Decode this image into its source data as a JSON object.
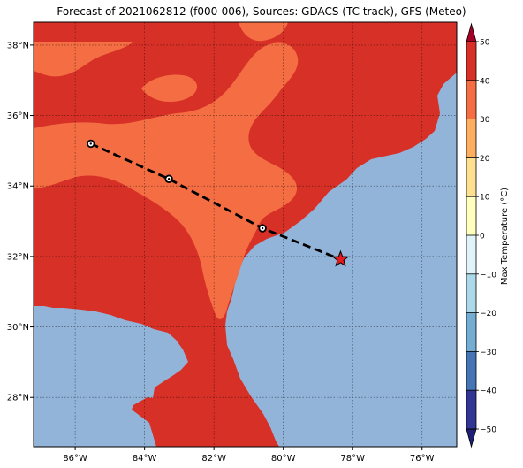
{
  "title": "Forecast of 2021062812 (f000-006), Sources: GDACS (TC track), GFS (Meteo)",
  "map": {
    "lon_range": [
      -87.2,
      -75.0
    ],
    "lat_range": [
      26.6,
      38.65
    ],
    "lat_ticks": [
      {
        "value": 28,
        "label": "28°N"
      },
      {
        "value": 30,
        "label": "30°N"
      },
      {
        "value": 32,
        "label": "32°N"
      },
      {
        "value": 34,
        "label": "34°N"
      },
      {
        "value": 36,
        "label": "36°N"
      },
      {
        "value": 38,
        "label": "38°N"
      }
    ],
    "lon_ticks": [
      {
        "value": -86,
        "label": "86°W"
      },
      {
        "value": -84,
        "label": "84°W"
      },
      {
        "value": -82,
        "label": "82°W"
      },
      {
        "value": -80,
        "label": "80°W"
      },
      {
        "value": -78,
        "label": "78°W"
      },
      {
        "value": -76,
        "label": "76°W"
      }
    ],
    "gridlines": "dotted",
    "ocean_color": "#92b4d8",
    "fill_30_40_color": "#d73027",
    "fill_20_30_color": "#f46d43"
  },
  "track": {
    "points": [
      {
        "lon": -85.55,
        "lat": 35.2,
        "marker": "circle"
      },
      {
        "lon": -83.3,
        "lat": 34.2,
        "marker": "circle"
      },
      {
        "lon": -80.6,
        "lat": 32.8,
        "marker": "circle"
      },
      {
        "lon": -78.35,
        "lat": 31.92,
        "marker": "star"
      }
    ],
    "line_color": "#000000",
    "star_color": "#e41a1c"
  },
  "colorbar": {
    "label": "Max Temperature (°C)",
    "levels": [
      -50,
      -40,
      -30,
      -20,
      -10,
      0,
      10,
      20,
      30,
      40,
      50
    ],
    "tick_labels": [
      "−50",
      "−40",
      "−30",
      "−20",
      "−10",
      "0",
      "10",
      "20",
      "30",
      "40",
      "50"
    ],
    "colors": [
      "#313695",
      "#4575b4",
      "#74add1",
      "#abd9e9",
      "#e0f3f8",
      "#ffffbf",
      "#fee090",
      "#fdae61",
      "#f46d43",
      "#d73027"
    ],
    "extend_low_color": "#1f1f78",
    "extend_high_color": "#a50026"
  }
}
